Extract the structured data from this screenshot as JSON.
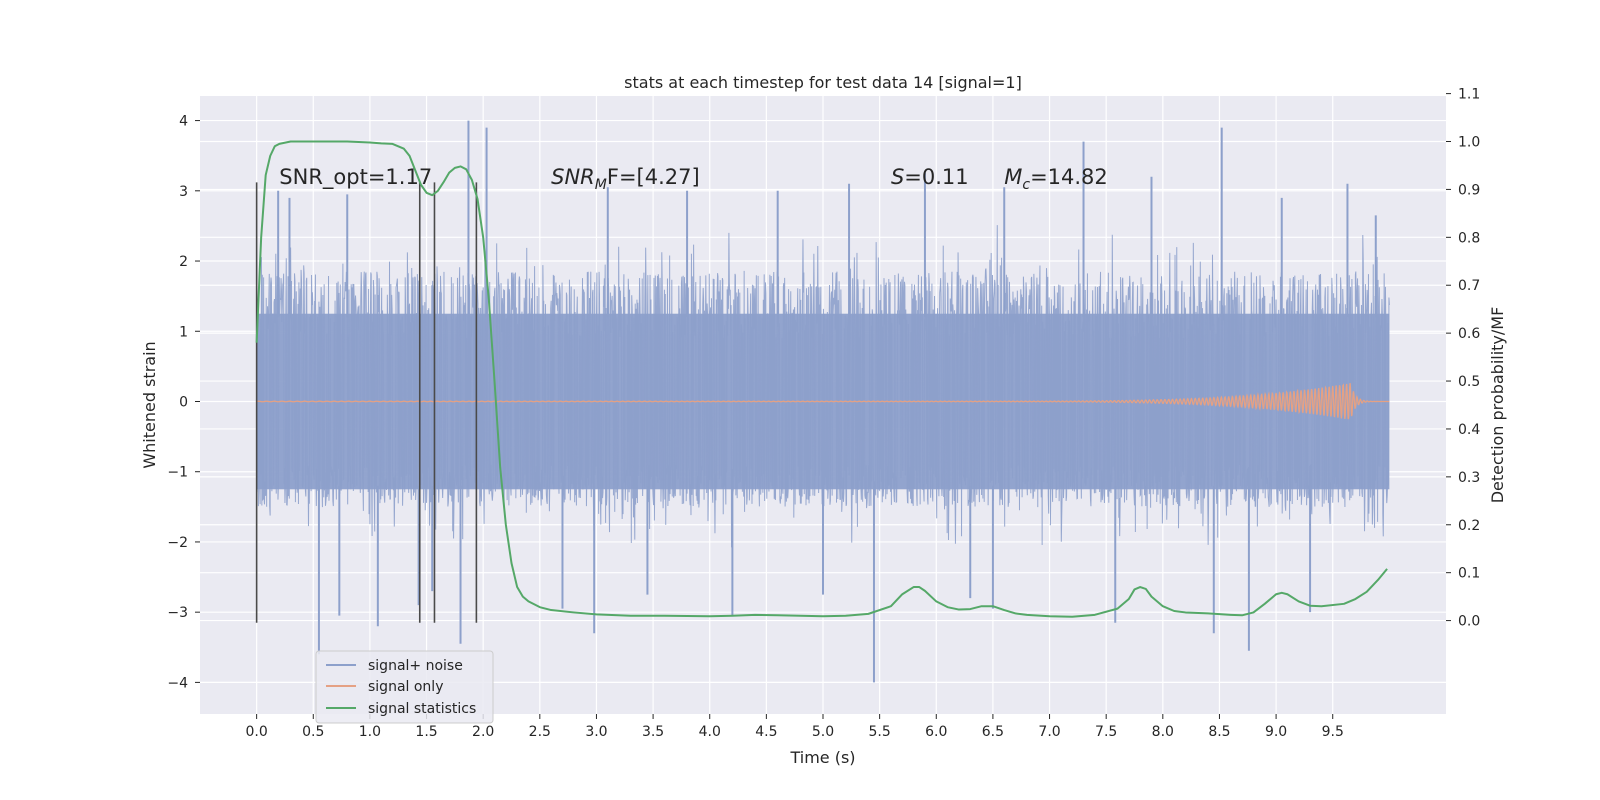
{
  "chart_data": {
    "type": "line",
    "title": "stats at each timestep for test data 14 [signal=1]",
    "xlabel": "Time (s)",
    "ylabel_left": "Whitened strain",
    "ylabel_right": "Detection probability/MF",
    "xlim": [
      -0.5,
      10.5
    ],
    "ylim_left": [
      -4.45,
      4.35
    ],
    "ylim_right": [
      -0.195,
      1.095
    ],
    "x_ticks": [
      "0.0",
      "0.5",
      "1.0",
      "1.5",
      "2.0",
      "2.5",
      "3.0",
      "3.5",
      "4.0",
      "4.5",
      "5.0",
      "5.5",
      "6.0",
      "6.5",
      "7.0",
      "7.5",
      "8.0",
      "8.5",
      "9.0",
      "9.5"
    ],
    "y_ticks_left": [
      "−4",
      "−3",
      "−2",
      "−1",
      "0",
      "1",
      "2",
      "3",
      "4"
    ],
    "y_ticks_right": [
      "0.0",
      "0.1",
      "0.2",
      "0.3",
      "0.4",
      "0.5",
      "0.6",
      "0.7",
      "0.8",
      "0.9",
      "1.0",
      "1.1"
    ],
    "grid": true,
    "legend_position": "lower-left",
    "colors": {
      "background": "#eaeaf2",
      "grid": "#ffffff",
      "signal_noise": "#8da0cb",
      "signal_only": "#e5a184",
      "statistics": "#55a868",
      "vlines": "#4a4a4a"
    },
    "annotations": {
      "snr_opt": {
        "label": "SNR_opt=1.17",
        "x": 0.2,
        "y": 3.2
      },
      "snr_mf": {
        "base": "SNR",
        "sub": "M",
        "tail": "F=[4.27]",
        "x": 2.6,
        "y": 3.2
      },
      "s": {
        "symbol": "S",
        "tail": "=0.11",
        "x": 5.6,
        "y": 3.2
      },
      "mc": {
        "base": "M",
        "sub": "c",
        "tail": "=14.82",
        "x": 6.6,
        "y": 3.2
      }
    },
    "vlines": {
      "x": [
        0.0,
        1.44,
        1.57,
        1.94
      ],
      "y_range": [
        -3.15,
        3.12
      ]
    },
    "series": [
      {
        "name": "signal+ noise",
        "kind": "noise_band",
        "axis": "left",
        "x_range": [
          0.0,
          10.0
        ],
        "dense_range": [
          -1.5,
          1.85
        ],
        "core_range": [
          -1.25,
          1.25
        ],
        "spikes": [
          [
            0.19,
            3.0
          ],
          [
            0.29,
            2.9
          ],
          [
            0.55,
            -3.6
          ],
          [
            0.73,
            -3.05
          ],
          [
            0.8,
            2.95
          ],
          [
            1.07,
            -3.2
          ],
          [
            1.43,
            -2.9
          ],
          [
            1.55,
            -2.7
          ],
          [
            1.8,
            -3.45
          ],
          [
            1.87,
            4.0
          ],
          [
            2.03,
            3.9
          ],
          [
            2.7,
            -2.95
          ],
          [
            2.98,
            -3.3
          ],
          [
            3.1,
            3.05
          ],
          [
            3.45,
            -2.75
          ],
          [
            3.8,
            3.0
          ],
          [
            4.2,
            -3.05
          ],
          [
            4.6,
            3.0
          ],
          [
            5.0,
            -2.75
          ],
          [
            5.23,
            3.1
          ],
          [
            5.45,
            -4.0
          ],
          [
            5.9,
            3.25
          ],
          [
            6.3,
            -2.8
          ],
          [
            6.5,
            -2.95
          ],
          [
            6.6,
            3.05
          ],
          [
            7.3,
            3.7
          ],
          [
            7.58,
            -3.15
          ],
          [
            7.9,
            3.2
          ],
          [
            8.45,
            -3.3
          ],
          [
            8.52,
            3.9
          ],
          [
            8.76,
            -3.55
          ],
          [
            9.05,
            2.9
          ],
          [
            9.3,
            -3.0
          ],
          [
            9.63,
            3.1
          ],
          [
            9.88,
            2.65
          ]
        ]
      },
      {
        "name": "signal only",
        "kind": "chirp",
        "axis": "left",
        "x_range": [
          0.0,
          10.0
        ],
        "peak_x": 9.66,
        "peak_amp": 0.26
      },
      {
        "name": "signal statistics",
        "kind": "line",
        "axis": "right",
        "x": [
          0.0,
          0.04,
          0.08,
          0.12,
          0.16,
          0.2,
          0.3,
          0.4,
          0.6,
          0.8,
          1.0,
          1.1,
          1.2,
          1.3,
          1.35,
          1.4,
          1.45,
          1.5,
          1.55,
          1.6,
          1.65,
          1.7,
          1.75,
          1.8,
          1.85,
          1.9,
          1.95,
          2.0,
          2.05,
          2.1,
          2.15,
          2.2,
          2.25,
          2.3,
          2.35,
          2.4,
          2.5,
          2.6,
          2.8,
          3.0,
          3.3,
          3.6,
          4.0,
          4.2,
          4.4,
          4.6,
          4.8,
          5.0,
          5.2,
          5.4,
          5.6,
          5.7,
          5.8,
          5.85,
          5.9,
          6.0,
          6.1,
          6.2,
          6.3,
          6.4,
          6.5,
          6.6,
          6.7,
          6.8,
          7.0,
          7.2,
          7.4,
          7.6,
          7.7,
          7.75,
          7.8,
          7.85,
          7.9,
          8.0,
          8.1,
          8.2,
          8.4,
          8.6,
          8.7,
          8.8,
          8.9,
          9.0,
          9.05,
          9.1,
          9.2,
          9.3,
          9.4,
          9.6,
          9.7,
          9.8,
          9.9,
          9.98
        ],
        "values": [
          0.58,
          0.8,
          0.93,
          0.97,
          0.99,
          0.995,
          1.0,
          1.0,
          1.0,
          1.0,
          0.998,
          0.996,
          0.995,
          0.985,
          0.97,
          0.94,
          0.91,
          0.893,
          0.888,
          0.897,
          0.915,
          0.935,
          0.945,
          0.948,
          0.942,
          0.92,
          0.88,
          0.8,
          0.67,
          0.5,
          0.32,
          0.2,
          0.12,
          0.07,
          0.05,
          0.04,
          0.028,
          0.022,
          0.017,
          0.013,
          0.01,
          0.01,
          0.009,
          0.01,
          0.012,
          0.011,
          0.01,
          0.009,
          0.01,
          0.014,
          0.03,
          0.055,
          0.07,
          0.07,
          0.062,
          0.04,
          0.028,
          0.023,
          0.024,
          0.03,
          0.03,
          0.022,
          0.015,
          0.012,
          0.009,
          0.008,
          0.012,
          0.025,
          0.045,
          0.065,
          0.07,
          0.066,
          0.05,
          0.03,
          0.02,
          0.017,
          0.015,
          0.012,
          0.011,
          0.017,
          0.035,
          0.055,
          0.058,
          0.055,
          0.04,
          0.031,
          0.03,
          0.035,
          0.045,
          0.06,
          0.085,
          0.108
        ]
      }
    ]
  }
}
